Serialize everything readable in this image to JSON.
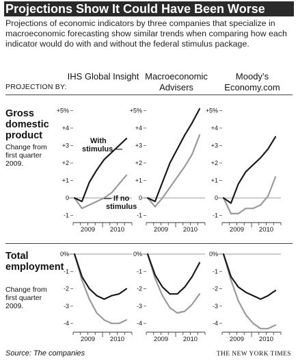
{
  "title": "Projections Show It Could Have Been Worse",
  "subtitle": "Projections of economic indicators by three companies that specialize in macroeconomic forecasting show similar trends when comparing how each indicator would do with and without the federal stimulus package.",
  "projection_by": "PROJECTION BY:",
  "companies": [
    "IHS Global Insight",
    "Macroeconomic Advisers",
    "Moody’s Economy.com"
  ],
  "sections": [
    {
      "title": "Gross domestic product",
      "subtitle": "Change from first quarter 2009."
    },
    {
      "title": "Total employment",
      "subtitle": "Change from first quarter 2009."
    }
  ],
  "annotations": {
    "with_stimulus": "With stimulus",
    "no_stimulus": "If no stimulus"
  },
  "source": "Source: The companies",
  "credit": "THE NEW YORK TIMES",
  "colors": {
    "with_stimulus": "#1a1a1a",
    "no_stimulus": "#9a9a9a",
    "title_bg": "#2a2a2a"
  },
  "chart_data": [
    {
      "type": "line",
      "panel": "GDP - IHS Global Insight",
      "x": [
        "2009Q1",
        "2009Q2",
        "2009Q3",
        "2009Q4",
        "2010Q1",
        "2010Q2",
        "2010Q3",
        "2010Q4"
      ],
      "x_tick_labels": [
        "2009",
        "2010"
      ],
      "y_ticks": [
        "+5%",
        "+4",
        "+3",
        "+2",
        "+1",
        "0",
        "-1"
      ],
      "ylim": [
        -1,
        5
      ],
      "series": [
        {
          "name": "With stimulus",
          "values": [
            0,
            -0.2,
            0.9,
            1.6,
            2.2,
            2.6,
            3.0,
            3.4
          ]
        },
        {
          "name": "If no stimulus",
          "values": [
            0,
            -0.6,
            -0.4,
            -0.2,
            0.0,
            0.3,
            0.8,
            1.3
          ]
        }
      ]
    },
    {
      "type": "line",
      "panel": "GDP - Macroeconomic Advisers",
      "x": [
        "2009Q1",
        "2009Q2",
        "2009Q3",
        "2009Q4",
        "2010Q1",
        "2010Q2",
        "2010Q3",
        "2010Q4"
      ],
      "x_tick_labels": [
        "2009",
        "2010"
      ],
      "ylim": [
        -1,
        5
      ],
      "series": [
        {
          "name": "With stimulus",
          "values": [
            0,
            -0.2,
            0.9,
            2.0,
            2.8,
            3.6,
            4.3,
            5.1
          ]
        },
        {
          "name": "If no stimulus",
          "values": [
            0,
            -0.5,
            0.0,
            0.6,
            1.2,
            1.8,
            2.5,
            3.6
          ]
        }
      ]
    },
    {
      "type": "line",
      "panel": "GDP - Moody’s Economy.com",
      "x": [
        "2009Q1",
        "2009Q2",
        "2009Q3",
        "2009Q4",
        "2010Q1",
        "2010Q2",
        "2010Q3",
        "2010Q4"
      ],
      "x_tick_labels": [
        "2009",
        "2010"
      ],
      "ylim": [
        -1,
        5
      ],
      "series": [
        {
          "name": "With stimulus",
          "values": [
            0,
            -0.3,
            0.8,
            1.5,
            1.9,
            2.3,
            2.8,
            3.5
          ]
        },
        {
          "name": "If no stimulus",
          "values": [
            0,
            -0.9,
            -0.9,
            -0.6,
            -0.6,
            -0.4,
            0.1,
            1.2
          ]
        }
      ]
    },
    {
      "type": "line",
      "panel": "Employment - IHS Global Insight",
      "x": [
        "2009Q1",
        "2009Q2",
        "2009Q3",
        "2009Q4",
        "2010Q1",
        "2010Q2",
        "2010Q3",
        "2010Q4"
      ],
      "x_tick_labels": [
        "2009",
        "2010"
      ],
      "y_ticks": [
        "0%",
        "-1",
        "-2",
        "-3",
        "-4"
      ],
      "ylim": [
        -4.3,
        0
      ],
      "series": [
        {
          "name": "With stimulus",
          "values": [
            0,
            -1.3,
            -2.0,
            -2.4,
            -2.6,
            -2.4,
            -2.3,
            -2.0
          ]
        },
        {
          "name": "If no stimulus",
          "values": [
            0,
            -1.5,
            -2.6,
            -3.4,
            -3.8,
            -4.0,
            -4.0,
            -3.8
          ]
        }
      ]
    },
    {
      "type": "line",
      "panel": "Employment - Macroeconomic Advisers",
      "x": [
        "2009Q1",
        "2009Q2",
        "2009Q3",
        "2009Q4",
        "2010Q1",
        "2010Q2",
        "2010Q3",
        "2010Q4"
      ],
      "x_tick_labels": [
        "2009",
        "2010"
      ],
      "ylim": [
        -4.3,
        0
      ],
      "series": [
        {
          "name": "With stimulus",
          "values": [
            0,
            -1.2,
            -1.9,
            -2.3,
            -2.3,
            -1.9,
            -1.3,
            -0.5
          ]
        },
        {
          "name": "If no stimulus",
          "values": [
            0,
            -1.4,
            -2.4,
            -3.1,
            -3.4,
            -3.3,
            -2.9,
            -2.3
          ]
        }
      ]
    },
    {
      "type": "line",
      "panel": "Employment - Moody’s Economy.com",
      "x": [
        "2009Q1",
        "2009Q2",
        "2009Q3",
        "2009Q4",
        "2010Q1",
        "2010Q2",
        "2010Q3",
        "2010Q4"
      ],
      "x_tick_labels": [
        "2009",
        "2010"
      ],
      "ylim": [
        -4.3,
        0
      ],
      "series": [
        {
          "name": "With stimulus",
          "values": [
            0,
            -1.3,
            -1.9,
            -2.2,
            -2.4,
            -2.6,
            -2.4,
            -2.1
          ]
        },
        {
          "name": "If no stimulus",
          "values": [
            0,
            -1.5,
            -2.7,
            -3.5,
            -4.0,
            -4.3,
            -4.3,
            -4.1
          ]
        }
      ]
    }
  ]
}
